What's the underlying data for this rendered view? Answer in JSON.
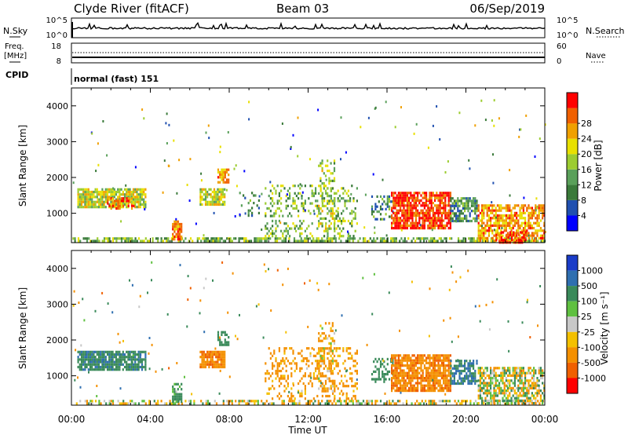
{
  "header": {
    "station": "Clyde River (fitACF)",
    "beam": "Beam 03",
    "date": "06/Sep/2019",
    "nsky_label": "N.Sky",
    "nsearch_label": "N.Search",
    "freq_label_1": "Freq.",
    "freq_label_2": "[MHz]",
    "nave_label": "Nave",
    "cpid_label": "CPID",
    "cpid_text": "normal (fast) 151",
    "noise_ticks_left": [
      "10^5",
      "10^0"
    ],
    "noise_ticks_right": [
      "10^5",
      "10^0"
    ],
    "freq_ticks_left": [
      "18",
      "8"
    ],
    "nave_ticks_right": [
      "60",
      "0"
    ]
  },
  "chart_data": [
    {
      "type": "heatmap",
      "title": "",
      "quantity": "Power",
      "xlabel": "",
      "ylabel": "Slant Range [km]",
      "xlim": [
        0,
        24
      ],
      "ylim": [
        180,
        4500
      ],
      "x_tick_labels": [
        "00:00",
        "04:00",
        "08:00",
        "12:00",
        "16:00",
        "20:00",
        "00:00"
      ],
      "y_ticks": [
        1000,
        2000,
        3000,
        4000
      ],
      "y_tick_labels": [
        "1000",
        "2000",
        "3000",
        "4000"
      ],
      "colorbar": {
        "label": "Power [dB]",
        "range": [
          0,
          32
        ],
        "tick_labels": [
          "4",
          "8",
          "12",
          "16",
          "20",
          "24",
          "28"
        ],
        "colors": [
          "#0000ff",
          "#2050b0",
          "#3a7a3a",
          "#5aa05a",
          "#9ccc30",
          "#e8e000",
          "#f0a000",
          "#f06000",
          "#ff0000"
        ]
      },
      "regions": [
        {
          "t0": 0.05,
          "t1": 24,
          "r0": 200,
          "r1": 330,
          "value": 14,
          "density": 0.6
        },
        {
          "t0": 0.3,
          "t1": 3.8,
          "r0": 1150,
          "r1": 1700,
          "value": 18,
          "density": 0.85
        },
        {
          "t0": 1.8,
          "t1": 3.2,
          "r0": 1100,
          "r1": 1450,
          "value": 27,
          "density": 0.5
        },
        {
          "t0": 5.1,
          "t1": 5.6,
          "r0": 300,
          "r1": 800,
          "value": 26,
          "density": 0.8
        },
        {
          "t0": 6.5,
          "t1": 7.8,
          "r0": 1250,
          "r1": 1700,
          "value": 18,
          "density": 0.8
        },
        {
          "t0": 7.4,
          "t1": 8.0,
          "r0": 1850,
          "r1": 2250,
          "value": 24,
          "density": 0.7
        },
        {
          "t0": 8.5,
          "t1": 9.5,
          "r0": 900,
          "r1": 1600,
          "value": 12,
          "density": 0.15
        },
        {
          "t0": 9.8,
          "t1": 14.5,
          "r0": 350,
          "r1": 1800,
          "value": 14,
          "density": 0.25
        },
        {
          "t0": 12.5,
          "t1": 13.3,
          "r0": 600,
          "r1": 2500,
          "value": 16,
          "density": 0.35
        },
        {
          "t0": 15.2,
          "t1": 16.3,
          "r0": 800,
          "r1": 1500,
          "value": 10,
          "density": 0.45
        },
        {
          "t0": 16.2,
          "t1": 19.2,
          "r0": 550,
          "r1": 1600,
          "value": 29,
          "density": 0.8
        },
        {
          "t0": 19.2,
          "t1": 20.6,
          "r0": 800,
          "r1": 1450,
          "value": 10,
          "density": 0.7
        },
        {
          "t0": 20.6,
          "t1": 24,
          "r0": 250,
          "r1": 1250,
          "value": 24,
          "density": 0.65
        },
        {
          "t0": 21.5,
          "t1": 23.0,
          "r0": 200,
          "r1": 500,
          "value": 30,
          "density": 0.6
        }
      ]
    },
    {
      "type": "heatmap",
      "title": "",
      "quantity": "Velocity",
      "xlabel": "Time UT",
      "ylabel": "Slant Range [km]",
      "xlim": [
        0,
        24
      ],
      "ylim": [
        180,
        4500
      ],
      "x_tick_labels": [
        "00:00",
        "04:00",
        "08:00",
        "12:00",
        "16:00",
        "20:00",
        "00:00"
      ],
      "y_ticks": [
        1000,
        2000,
        3000,
        4000
      ],
      "y_tick_labels": [
        "1000",
        "2000",
        "3000",
        "4000"
      ],
      "colorbar": {
        "label": "Velocity [m s⁻¹]",
        "tick_labels": [
          "1000",
          "500",
          "100",
          "25",
          "-25",
          "-100",
          "-500",
          "-1000"
        ],
        "colors": [
          "#1a3cc8",
          "#2f6fb0",
          "#3a8a5a",
          "#5fc040",
          "#c8c8c8",
          "#f4c000",
          "#f49000",
          "#f06000",
          "#ff0000"
        ]
      },
      "regions": [
        {
          "t0": 0.05,
          "t1": 24,
          "r0": 200,
          "r1": 330,
          "value": -30,
          "density": 0.45
        },
        {
          "t0": 0.3,
          "t1": 3.8,
          "r0": 1150,
          "r1": 1700,
          "value": 400,
          "density": 0.85
        },
        {
          "t0": 5.1,
          "t1": 5.6,
          "r0": 300,
          "r1": 800,
          "value": 200,
          "density": 0.7
        },
        {
          "t0": 6.5,
          "t1": 7.8,
          "r0": 1250,
          "r1": 1700,
          "value": -450,
          "density": 0.85
        },
        {
          "t0": 7.4,
          "t1": 8.0,
          "r0": 1850,
          "r1": 2250,
          "value": 300,
          "density": 0.6
        },
        {
          "t0": 9.8,
          "t1": 14.5,
          "r0": 350,
          "r1": 1800,
          "value": -200,
          "density": 0.25
        },
        {
          "t0": 12.5,
          "t1": 13.3,
          "r0": 600,
          "r1": 2500,
          "value": -120,
          "density": 0.35
        },
        {
          "t0": 15.2,
          "t1": 16.3,
          "r0": 800,
          "r1": 1500,
          "value": 300,
          "density": 0.4
        },
        {
          "t0": 16.2,
          "t1": 19.2,
          "r0": 550,
          "r1": 1600,
          "value": -450,
          "density": 0.85
        },
        {
          "t0": 19.2,
          "t1": 20.6,
          "r0": 800,
          "r1": 1450,
          "value": 500,
          "density": 0.7
        },
        {
          "t0": 20.6,
          "t1": 24,
          "r0": 250,
          "r1": 1250,
          "value": 0,
          "density": 0.65
        }
      ]
    }
  ]
}
